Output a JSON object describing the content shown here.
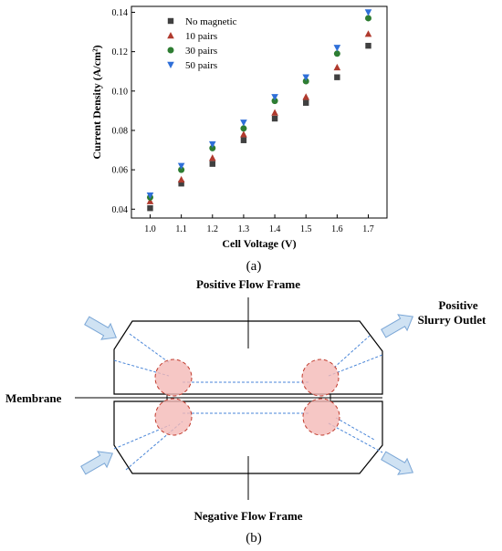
{
  "chart_data": {
    "type": "scatter",
    "xlabel": "Cell Voltage (V)",
    "ylabel": "Current Density (A/cm²)",
    "xlim": [
      0.94,
      1.76
    ],
    "ylim": [
      0.0355,
      0.143
    ],
    "x_ticks": [
      "1.0",
      "1.1",
      "1.2",
      "1.3",
      "1.4",
      "1.5",
      "1.6",
      "1.7"
    ],
    "y_ticks": [
      "0.04",
      "0.06",
      "0.08",
      "0.10",
      "0.12",
      "0.14"
    ],
    "grid": false,
    "legend_position": "top-left",
    "x": [
      1.0,
      1.1,
      1.2,
      1.3,
      1.4,
      1.5,
      1.6,
      1.7
    ],
    "series": [
      {
        "name": "No magnetic",
        "marker": "square",
        "color": "#404040",
        "values": [
          0.0405,
          0.053,
          0.063,
          0.075,
          0.086,
          0.094,
          0.107,
          0.123
        ]
      },
      {
        "name": "10 pairs",
        "marker": "triangle-up",
        "color": "#b03a2e",
        "values": [
          0.044,
          0.055,
          0.066,
          0.078,
          0.089,
          0.097,
          0.112,
          0.129
        ]
      },
      {
        "name": "30 pairs",
        "marker": "circle",
        "color": "#2e7d32",
        "values": [
          0.046,
          0.06,
          0.071,
          0.081,
          0.095,
          0.105,
          0.119,
          0.137
        ]
      },
      {
        "name": "50 pairs",
        "marker": "triangle-down",
        "color": "#2f6fd8",
        "values": [
          0.047,
          0.062,
          0.073,
          0.084,
          0.097,
          0.107,
          0.122,
          0.14
        ]
      }
    ]
  },
  "panel_a_label": "(a)",
  "panel_b": {
    "label": "(b)",
    "top_label": "Positive Flow Frame",
    "bottom_label": "Negative Flow Frame",
    "left_label": "Membrane",
    "right_label_line1": "Positive",
    "right_label_line2": "Slurry  Outlet",
    "colors": {
      "flow_line": "#4a86d8",
      "circle_fill": "#f4b9b6",
      "circle_stroke": "#c0392b",
      "arrow_fill": "#cfe2f3",
      "arrow_stroke": "#7aa6d6"
    }
  }
}
